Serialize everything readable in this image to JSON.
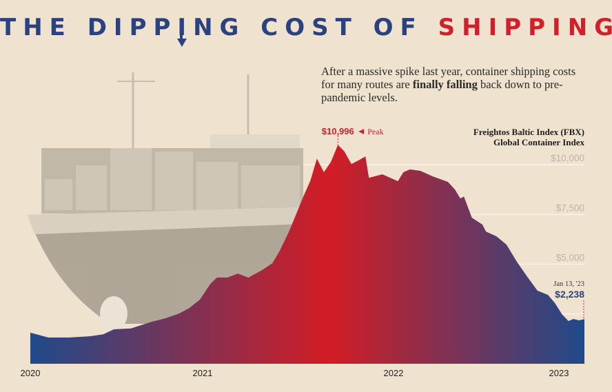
{
  "title": {
    "prefix": "THE DIPP",
    "arrow_letter": "I",
    "suffix": "NG COST OF ",
    "highlight": "SHIPPING"
  },
  "intro": {
    "part1": "After a massive spike last year, container shipping costs for many routes are ",
    "bold": "finally falling",
    "part2": " back down to pre-pandemic levels."
  },
  "colors": {
    "blue": "#2b4280",
    "red": "#d31f2a",
    "area_blue": "#1f4a8a",
    "area_red": "#d31c25",
    "background": "#efe3cf"
  },
  "chart_data": {
    "type": "area",
    "title": "Freightos Baltic Index (FBX)",
    "subtitle": "Global Container Index",
    "xlabel": "",
    "ylabel": "",
    "x_ticks": [
      "2020",
      "2021",
      "2022",
      "2023"
    ],
    "y_ticks": [
      "$10,000",
      "$7,500",
      "$5,000"
    ],
    "ylim": [
      0,
      11000
    ],
    "xlim": [
      "2020-01-01",
      "2023-01-13"
    ],
    "grid": true,
    "fill": "horizontal gradient blue-red-blue",
    "annotations": {
      "peak": {
        "value_label": "$10,996",
        "label": "Peak",
        "date": "2021-09-07",
        "value": 10996
      },
      "latest": {
        "date_label": "Jan 13, '23",
        "value_label": "$2,238",
        "date": "2023-01-13",
        "value": 2238
      }
    },
    "points": [
      [
        "2020-01-01",
        1560
      ],
      [
        "2020-02-06",
        1320
      ],
      [
        "2020-03-18",
        1320
      ],
      [
        "2020-04-29",
        1380
      ],
      [
        "2020-05-26",
        1480
      ],
      [
        "2020-06-16",
        1730
      ],
      [
        "2020-07-20",
        1770
      ],
      [
        "2020-08-31",
        2110
      ],
      [
        "2020-09-27",
        2280
      ],
      [
        "2020-10-25",
        2530
      ],
      [
        "2020-11-14",
        2800
      ],
      [
        "2020-12-05",
        3220
      ],
      [
        "2020-12-26",
        4010
      ],
      [
        "2021-01-08",
        4330
      ],
      [
        "2021-01-29",
        4330
      ],
      [
        "2021-02-19",
        4530
      ],
      [
        "2021-03-12",
        4330
      ],
      [
        "2021-04-08",
        4700
      ],
      [
        "2021-04-29",
        5050
      ],
      [
        "2021-05-13",
        5640
      ],
      [
        "2021-06-02",
        6680
      ],
      [
        "2021-06-30",
        8400
      ],
      [
        "2021-07-14",
        9200
      ],
      [
        "2021-07-27",
        10300
      ],
      [
        "2021-08-10",
        9620
      ],
      [
        "2021-08-24",
        10140
      ],
      [
        "2021-09-07",
        10996
      ],
      [
        "2021-09-20",
        10660
      ],
      [
        "2021-10-04",
        10030
      ],
      [
        "2021-10-18",
        10210
      ],
      [
        "2021-11-01",
        10415
      ],
      [
        "2021-11-08",
        9340
      ],
      [
        "2021-12-05",
        9515
      ],
      [
        "2022-01-05",
        9170
      ],
      [
        "2022-01-16",
        9620
      ],
      [
        "2022-01-29",
        9760
      ],
      [
        "2022-02-19",
        9690
      ],
      [
        "2022-03-16",
        9410
      ],
      [
        "2022-04-15",
        9135
      ],
      [
        "2022-04-29",
        8750
      ],
      [
        "2022-05-10",
        8300
      ],
      [
        "2022-05-17",
        8400
      ],
      [
        "2022-06-02",
        7335
      ],
      [
        "2022-06-23",
        6990
      ],
      [
        "2022-06-30",
        6640
      ],
      [
        "2022-07-21",
        6400
      ],
      [
        "2022-08-10",
        5985
      ],
      [
        "2022-08-31",
        5120
      ],
      [
        "2022-09-21",
        4360
      ],
      [
        "2022-10-11",
        3670
      ],
      [
        "2022-11-01",
        3460
      ],
      [
        "2022-11-15",
        3045
      ],
      [
        "2022-11-29",
        2490
      ],
      [
        "2022-12-12",
        2145
      ],
      [
        "2022-12-22",
        2250
      ],
      [
        "2023-01-02",
        2180
      ],
      [
        "2023-01-13",
        2238
      ]
    ]
  }
}
